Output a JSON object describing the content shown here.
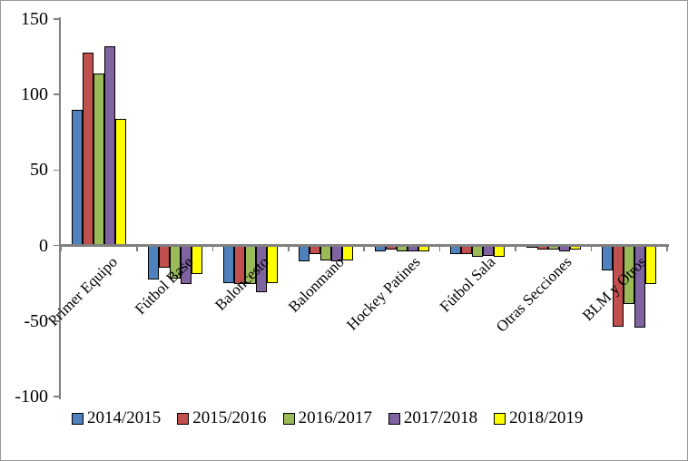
{
  "chart_data": {
    "type": "bar",
    "title": "",
    "xlabel": "",
    "ylabel": "",
    "categories": [
      "Primer Equipo",
      "Fútbol Base",
      "Baloncesto",
      "Balonmano",
      "Hockey Patines",
      "Fútbol Sala",
      "Otras Secciones",
      "BLM y Otros"
    ],
    "series": [
      {
        "name": "2014/2015",
        "color": "#4F81BD",
        "values": [
          90,
          -22,
          -24,
          -10,
          -3,
          -5,
          -1,
          -16
        ]
      },
      {
        "name": "2015/2016",
        "color": "#C0504D",
        "values": [
          128,
          -14,
          -25,
          -5,
          -2,
          -5,
          -2,
          -53
        ]
      },
      {
        "name": "2016/2017",
        "color": "#9BBB59",
        "values": [
          114,
          -21,
          -25,
          -9,
          -3,
          -7,
          -2,
          -38
        ]
      },
      {
        "name": "2017/2018",
        "color": "#8064A2",
        "values": [
          132,
          -25,
          -30,
          -10,
          -3,
          -6,
          -3,
          -54
        ]
      },
      {
        "name": "2018/2019",
        "color": "#FFFF00",
        "values": [
          84,
          -18,
          -24,
          -9,
          -3,
          -7,
          -2,
          -25
        ]
      }
    ],
    "yaxis": {
      "min": -100,
      "max": 150,
      "step": 50,
      "tick_labels": [
        "150",
        "100",
        "50",
        "0",
        "-50",
        "-100"
      ]
    },
    "legend_position": "bottom",
    "grid": false,
    "bar_border_color": "#000000",
    "axis_color": "#808080",
    "background_color": "#FFFFFF"
  }
}
